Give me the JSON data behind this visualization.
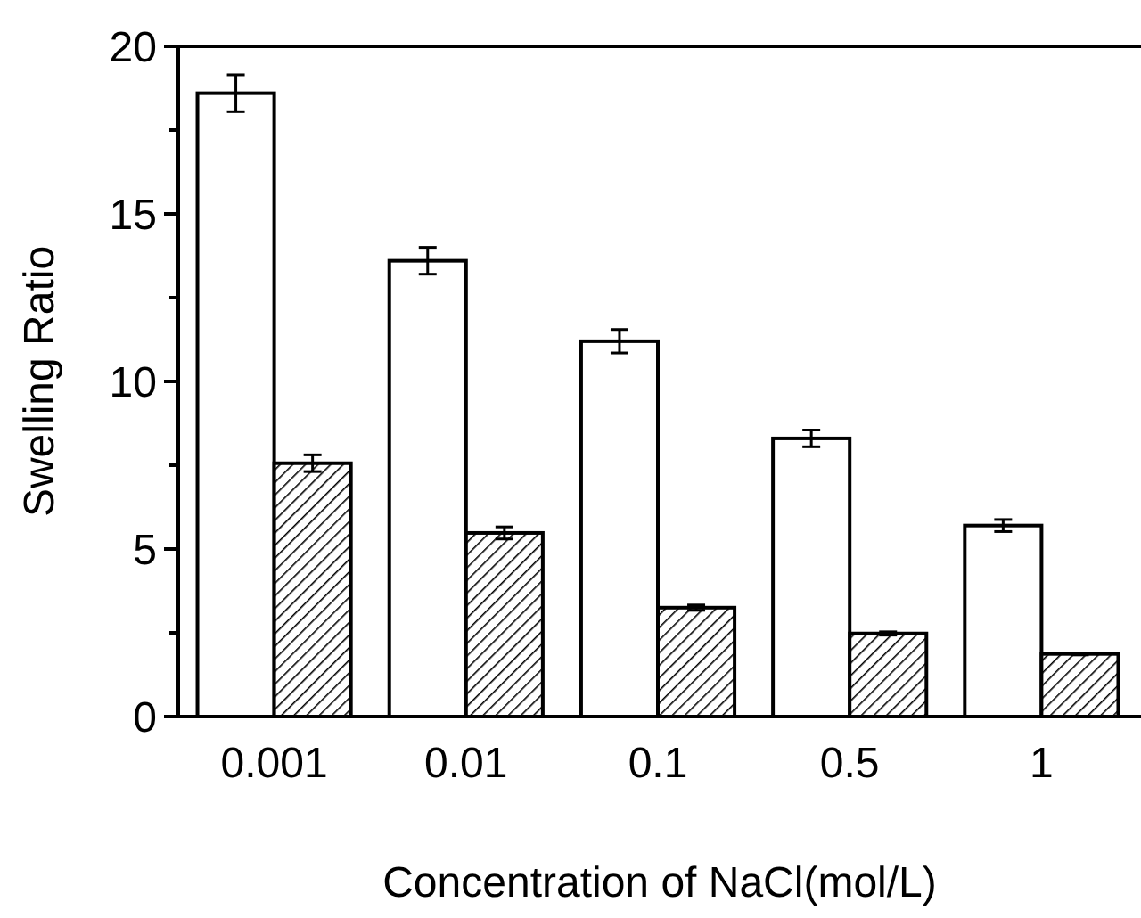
{
  "chart_data": {
    "type": "bar",
    "xlabel": "Concentration of NaCl(mol/L)",
    "ylabel": "Swelling Ratio",
    "categories": [
      "0.001",
      "0.01",
      "0.1",
      "0.5",
      "1"
    ],
    "series": [
      {
        "color": "#ffffff",
        "values": [
          18.6,
          13.6,
          11.2,
          8.3,
          5.7
        ],
        "errors": [
          0.55,
          0.4,
          0.35,
          0.25,
          0.18
        ]
      },
      {
        "color": "#000000",
        "values": [
          7.56,
          5.48,
          3.25,
          2.48,
          1.87
        ],
        "errors": [
          0.25,
          0.18,
          0.08,
          0.05,
          0.03
        ]
      }
    ],
    "ylim": [
      0,
      20
    ],
    "yticks": [
      0,
      5,
      10,
      15,
      20
    ],
    "grid": false
  }
}
